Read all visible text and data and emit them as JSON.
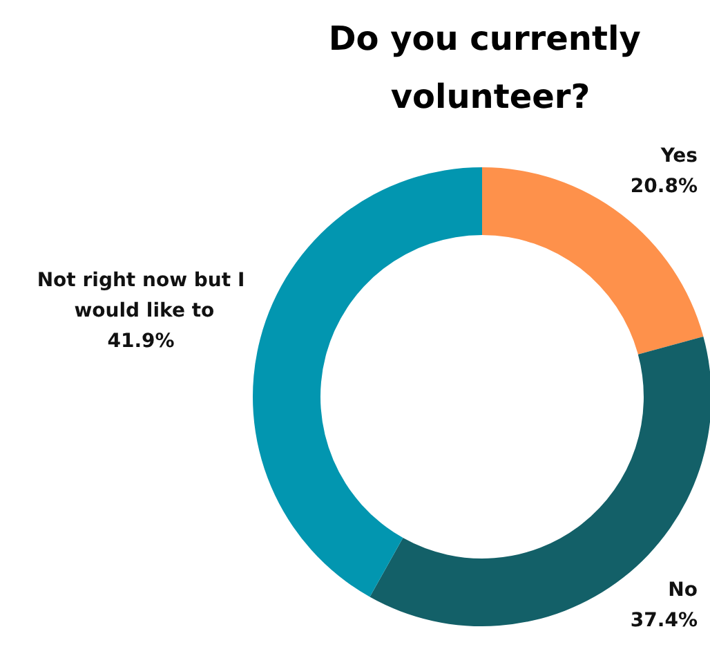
{
  "chart_data": {
    "type": "donut",
    "title": "Do you currently volunteer?",
    "categories": [
      "Yes",
      "No",
      "Not right now but I would like to"
    ],
    "values": [
      20.8,
      37.4,
      41.9
    ],
    "colors": [
      "#fe914b",
      "#136068",
      "#0296b0"
    ],
    "value_labels": [
      "20.8%",
      "37.4%",
      "41.9%"
    ],
    "legend": false
  }
}
